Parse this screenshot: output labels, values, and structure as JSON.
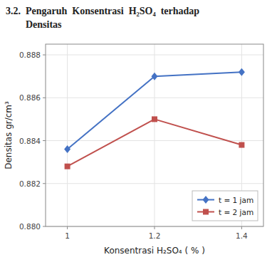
{
  "chart_data": {
    "type": "line",
    "title": "3.2.  Pengaruh  Konsentrasi  H₂SO₄  terhadap\n        Densitas",
    "x": [
      1,
      1.2,
      1.4
    ],
    "series": [
      {
        "name": "t = 1 jam",
        "color": "#4472C4",
        "marker": "diamond",
        "values": [
          0.8836,
          0.887,
          0.8872
        ]
      },
      {
        "name": "t = 2 jam",
        "color": "#C0504D",
        "marker": "square",
        "values": [
          0.8828,
          0.885,
          0.8838
        ]
      }
    ],
    "x_label": "Konsentrasi H₂SO₄ ( % )",
    "y_label": "Densitas gr/cm³",
    "xlim": [
      0.95,
      1.45
    ],
    "xticks": [
      1,
      1.2,
      1.4
    ],
    "ylim": [
      0.88,
      0.8885
    ],
    "yticks": [
      {
        "value": 0.88,
        "label": "0.880"
      },
      0.882,
      0.884,
      0.886,
      0.888
    ],
    "grid": true,
    "legend": "lower right"
  }
}
